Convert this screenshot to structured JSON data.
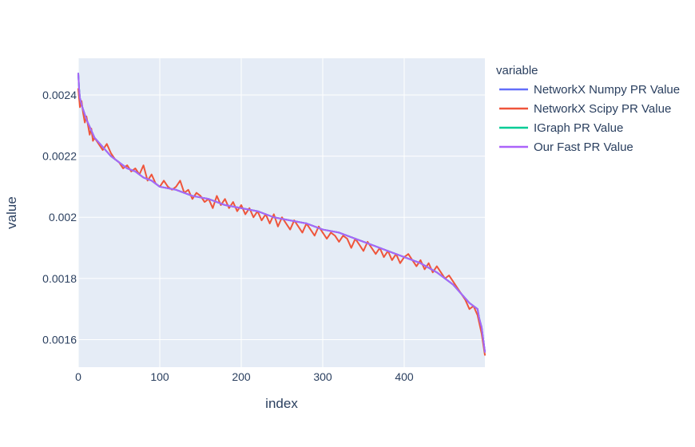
{
  "chart_data": {
    "type": "line",
    "xlabel": "index",
    "ylabel": "value",
    "xlim": [
      0,
      499
    ],
    "ylim": [
      0.00151,
      0.00252
    ],
    "x_ticks": [
      0,
      100,
      200,
      300,
      400
    ],
    "y_ticks": [
      0.0016,
      0.0018,
      0.002,
      0.0022,
      0.0024
    ],
    "y_tick_labels": [
      "0.0016",
      "0.0018",
      "0.002",
      "0.0022",
      "0.0024"
    ],
    "grid": true,
    "plot_background": "#e5ecf6",
    "legend_title": "variable",
    "legend_position": "right",
    "series": [
      {
        "name": "NetworkX Numpy PR Value",
        "color": "#636efa",
        "x": [
          0,
          1,
          2,
          5,
          10,
          20,
          30,
          40,
          50,
          60,
          70,
          80,
          90,
          100,
          120,
          140,
          160,
          180,
          200,
          220,
          240,
          260,
          280,
          300,
          320,
          340,
          360,
          380,
          400,
          420,
          440,
          460,
          470,
          480,
          490,
          492,
          495,
          497,
          499
        ],
        "values": [
          0.00247,
          0.00242,
          0.00239,
          0.00236,
          0.00232,
          0.00226,
          0.00223,
          0.0022,
          0.00218,
          0.00216,
          0.00215,
          0.00213,
          0.00212,
          0.0021,
          0.00209,
          0.00207,
          0.00206,
          0.00204,
          0.00203,
          0.00202,
          0.002,
          0.00199,
          0.00198,
          0.00196,
          0.00195,
          0.00193,
          0.00191,
          0.00189,
          0.00187,
          0.00185,
          0.00182,
          0.00178,
          0.00175,
          0.00172,
          0.0017,
          0.00167,
          0.00164,
          0.0016,
          0.00156
        ]
      },
      {
        "name": "NetworkX Scipy PR Value",
        "color": "#ef553b",
        "x": [
          0,
          2,
          4,
          6,
          8,
          10,
          12,
          14,
          16,
          18,
          20,
          25,
          30,
          35,
          40,
          45,
          50,
          55,
          60,
          65,
          70,
          75,
          80,
          85,
          90,
          95,
          100,
          105,
          110,
          115,
          120,
          125,
          130,
          135,
          140,
          145,
          150,
          155,
          160,
          165,
          170,
          175,
          180,
          185,
          190,
          195,
          200,
          205,
          210,
          215,
          220,
          225,
          230,
          235,
          240,
          245,
          250,
          255,
          260,
          265,
          270,
          275,
          280,
          285,
          290,
          295,
          300,
          305,
          310,
          315,
          320,
          325,
          330,
          335,
          340,
          345,
          350,
          355,
          360,
          365,
          370,
          375,
          380,
          385,
          390,
          395,
          400,
          405,
          410,
          415,
          420,
          425,
          430,
          435,
          440,
          445,
          450,
          455,
          460,
          465,
          470,
          475,
          480,
          485,
          490,
          495,
          499
        ],
        "values": [
          0.00242,
          0.00236,
          0.00238,
          0.00234,
          0.00231,
          0.00233,
          0.0023,
          0.00227,
          0.00229,
          0.00225,
          0.00226,
          0.00224,
          0.00222,
          0.00224,
          0.00221,
          0.00219,
          0.00218,
          0.00216,
          0.00217,
          0.00215,
          0.00216,
          0.00214,
          0.00217,
          0.00212,
          0.00214,
          0.00211,
          0.0021,
          0.00212,
          0.0021,
          0.00209,
          0.0021,
          0.00212,
          0.00208,
          0.00209,
          0.00206,
          0.00208,
          0.00207,
          0.00205,
          0.00206,
          0.00203,
          0.00207,
          0.00204,
          0.00206,
          0.00203,
          0.00205,
          0.00202,
          0.00204,
          0.00201,
          0.00203,
          0.002,
          0.00202,
          0.00199,
          0.00201,
          0.00198,
          0.00201,
          0.00197,
          0.002,
          0.00198,
          0.00196,
          0.00199,
          0.00197,
          0.00195,
          0.00198,
          0.00196,
          0.00194,
          0.00197,
          0.00195,
          0.00193,
          0.00195,
          0.00194,
          0.00192,
          0.00194,
          0.00193,
          0.0019,
          0.00193,
          0.00191,
          0.00189,
          0.00192,
          0.0019,
          0.00188,
          0.0019,
          0.00187,
          0.00189,
          0.00186,
          0.00188,
          0.00185,
          0.00187,
          0.00188,
          0.00186,
          0.00184,
          0.00186,
          0.00183,
          0.00185,
          0.00182,
          0.00184,
          0.00182,
          0.0018,
          0.00181,
          0.00179,
          0.00177,
          0.00175,
          0.00173,
          0.0017,
          0.00171,
          0.00168,
          0.00162,
          0.00155
        ]
      },
      {
        "name": "IGraph PR Value",
        "color": "#00cc96",
        "x": [
          0,
          1,
          2,
          5,
          10,
          20,
          30,
          40,
          50,
          60,
          70,
          80,
          90,
          100,
          120,
          140,
          160,
          180,
          200,
          220,
          240,
          260,
          280,
          300,
          320,
          340,
          360,
          380,
          400,
          420,
          440,
          460,
          470,
          480,
          490,
          492,
          495,
          497,
          499
        ],
        "values": [
          0.00247,
          0.00242,
          0.00239,
          0.00236,
          0.00232,
          0.00226,
          0.00223,
          0.0022,
          0.00218,
          0.00216,
          0.00215,
          0.00213,
          0.00212,
          0.0021,
          0.00209,
          0.00207,
          0.00206,
          0.00204,
          0.00203,
          0.00202,
          0.002,
          0.00199,
          0.00198,
          0.00196,
          0.00195,
          0.00193,
          0.00191,
          0.00189,
          0.00187,
          0.00185,
          0.00182,
          0.00178,
          0.00175,
          0.00172,
          0.0017,
          0.00167,
          0.00164,
          0.0016,
          0.00156
        ]
      },
      {
        "name": "Our Fast PR Value",
        "color": "#ab63fa",
        "x": [
          0,
          1,
          2,
          5,
          10,
          20,
          30,
          40,
          50,
          60,
          70,
          80,
          90,
          100,
          120,
          140,
          160,
          180,
          200,
          220,
          240,
          260,
          280,
          300,
          320,
          340,
          360,
          380,
          400,
          420,
          440,
          460,
          470,
          480,
          490,
          492,
          495,
          497,
          499
        ],
        "values": [
          0.00247,
          0.00242,
          0.00239,
          0.00236,
          0.00232,
          0.00226,
          0.00223,
          0.0022,
          0.00218,
          0.00216,
          0.00215,
          0.00213,
          0.00212,
          0.0021,
          0.00209,
          0.00207,
          0.00206,
          0.00204,
          0.00203,
          0.00202,
          0.002,
          0.00199,
          0.00198,
          0.00196,
          0.00195,
          0.00193,
          0.00191,
          0.00189,
          0.00187,
          0.00185,
          0.00182,
          0.00178,
          0.00175,
          0.00172,
          0.0017,
          0.00167,
          0.00164,
          0.0016,
          0.00156
        ]
      }
    ]
  }
}
